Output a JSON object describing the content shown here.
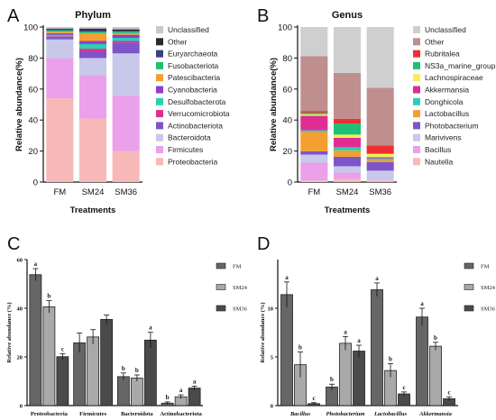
{
  "chart_data": [
    {
      "panel": "A",
      "type": "stacked-bar",
      "title": "Phylum",
      "xlabel": "Treatments",
      "ylabel": "Relative abundance(%)",
      "ylim": [
        0,
        100
      ],
      "yticks": [
        0,
        20,
        40,
        60,
        80,
        100
      ],
      "categories": [
        "FM",
        "SM24",
        "SM36"
      ],
      "legend_position": "right",
      "series": [
        {
          "name": "Proteobacteria",
          "color": "#f9b8b8",
          "values": [
            54,
            41,
            20
          ]
        },
        {
          "name": "Firmicutes",
          "color": "#eaa0ea",
          "values": [
            26,
            28,
            36
          ]
        },
        {
          "name": "Bacteroidota",
          "color": "#c8c8ea",
          "values": [
            12,
            11,
            27
          ]
        },
        {
          "name": "Actinobacteriota",
          "color": "#7d55c8",
          "values": [
            1,
            4,
            7
          ]
        },
        {
          "name": "Verrucomicrobiota",
          "color": "#df2d94",
          "values": [
            1,
            2,
            1
          ]
        },
        {
          "name": "Desulfobacterota",
          "color": "#2ad1b0",
          "values": [
            1,
            3,
            2
          ]
        },
        {
          "name": "Cyanobacteria",
          "color": "#8b3fd0",
          "values": [
            1,
            2,
            2
          ]
        },
        {
          "name": "Patescibacteria",
          "color": "#f4a030",
          "values": [
            1,
            5,
            1
          ]
        },
        {
          "name": "Fusobacteriota",
          "color": "#1fbf78",
          "values": [
            1,
            1,
            1
          ]
        },
        {
          "name": "Euryarchaeota",
          "color": "#3d3d84",
          "values": [
            0.5,
            1,
            0.5
          ]
        },
        {
          "name": "Other",
          "color": "#2a2a2a",
          "values": [
            0.5,
            1,
            1
          ]
        },
        {
          "name": "Unclassified",
          "color": "#c8c8c8",
          "values": [
            1,
            1,
            1.5
          ]
        }
      ]
    },
    {
      "panel": "B",
      "type": "stacked-bar",
      "title": "Genus",
      "xlabel": "Treatments",
      "ylabel": "Relative abundance(%)",
      "ylim": [
        0,
        100
      ],
      "yticks": [
        0,
        20,
        40,
        60,
        80,
        100
      ],
      "categories": [
        "FM",
        "SM24",
        "SM36"
      ],
      "legend_position": "right",
      "series": [
        {
          "name": "Nautella",
          "color": "#f9b8b8",
          "values": [
            1,
            2,
            1
          ]
        },
        {
          "name": "Bacillus",
          "color": "#eaa0ea",
          "values": [
            11,
            4,
            0.3
          ]
        },
        {
          "name": "Marivivens",
          "color": "#c8c8ea",
          "values": [
            5,
            4,
            6
          ]
        },
        {
          "name": "Photobacterium",
          "color": "#7d55c8",
          "values": [
            2,
            6,
            5.6
          ]
        },
        {
          "name": "Lactobacillus",
          "color": "#f4a030",
          "values": [
            12,
            4,
            1.3
          ]
        },
        {
          "name": "Donghicola",
          "color": "#2ad1b0",
          "values": [
            1,
            2,
            1
          ]
        },
        {
          "name": "Akkermansia",
          "color": "#df2d94",
          "values": [
            9,
            6,
            0.8
          ]
        },
        {
          "name": "Lachnospiraceae",
          "color": "#f5ee54",
          "values": [
            1,
            2,
            2
          ]
        },
        {
          "name": "NS3a_marine_group",
          "color": "#1fbf78",
          "values": [
            1,
            7,
            0.5
          ]
        },
        {
          "name": "Rubritalea",
          "color": "#ef2f2f",
          "values": [
            1,
            3,
            5
          ]
        },
        {
          "name": "Other",
          "color": "#bf8e8e",
          "values": [
            34,
            29,
            37
          ]
        },
        {
          "name": "Unclassified",
          "color": "#cfcfcf",
          "values": [
            18,
            29,
            39
          ]
        }
      ]
    },
    {
      "panel": "C",
      "type": "bar",
      "xlabel": "",
      "ylabel": "Relative abundance (%)",
      "ylim": [
        0,
        60
      ],
      "yticks": [
        0,
        20,
        40,
        60
      ],
      "categories": [
        "Proteobacteria",
        "Firmicutes",
        "Bacteroidota",
        "Actinobacteriota"
      ],
      "legend_position": "top-right",
      "series": [
        {
          "name": "FM",
          "color": "#666666",
          "values": [
            53.8,
            25.8,
            11.9,
            1.0
          ],
          "errors": [
            2.5,
            4.0,
            1.5,
            0.5
          ],
          "letters": [
            "a",
            "",
            "b",
            "b"
          ]
        },
        {
          "name": "SM24",
          "color": "#a9a9a9",
          "values": [
            40.6,
            28.2,
            11.3,
            3.6
          ],
          "errors": [
            2.5,
            3.0,
            1.3,
            0.8
          ],
          "letters": [
            "b",
            "",
            "b",
            "a"
          ]
        },
        {
          "name": "SM36",
          "color": "#4a4a4a",
          "values": [
            20.1,
            35.4,
            26.9,
            7.2
          ],
          "errors": [
            1.2,
            1.8,
            3.2,
            0.8
          ],
          "letters": [
            "c",
            "",
            "a",
            "a"
          ]
        }
      ]
    },
    {
      "panel": "D",
      "type": "bar",
      "xlabel": "",
      "ylabel": "Relative abundance (%)",
      "ylim": [
        0,
        15
      ],
      "yticks": [
        0,
        5,
        10
      ],
      "categories": [
        "Bacillus",
        "Photobacterium",
        "Lactobacillus",
        "Akkermansia"
      ],
      "legend_position": "top-right",
      "series": [
        {
          "name": "FM",
          "color": "#666666",
          "values": [
            11.4,
            1.9,
            11.9,
            9.1
          ],
          "errors": [
            1.3,
            0.3,
            0.7,
            0.9
          ],
          "letters": [
            "a",
            "b",
            "a",
            "a"
          ]
        },
        {
          "name": "SM24",
          "color": "#a9a9a9",
          "values": [
            4.2,
            6.4,
            3.6,
            6.1
          ],
          "errors": [
            1.3,
            0.7,
            0.7,
            0.4
          ],
          "letters": [
            "b",
            "a",
            "b",
            "b"
          ]
        },
        {
          "name": "SM36",
          "color": "#4a4a4a",
          "values": [
            0.2,
            5.6,
            1.2,
            0.7
          ],
          "errors": [
            0.1,
            0.6,
            0.2,
            0.2
          ],
          "letters": [
            "c",
            "a",
            "c",
            "c"
          ]
        }
      ]
    }
  ],
  "panel_letters": [
    "A",
    "B",
    "C",
    "D"
  ]
}
